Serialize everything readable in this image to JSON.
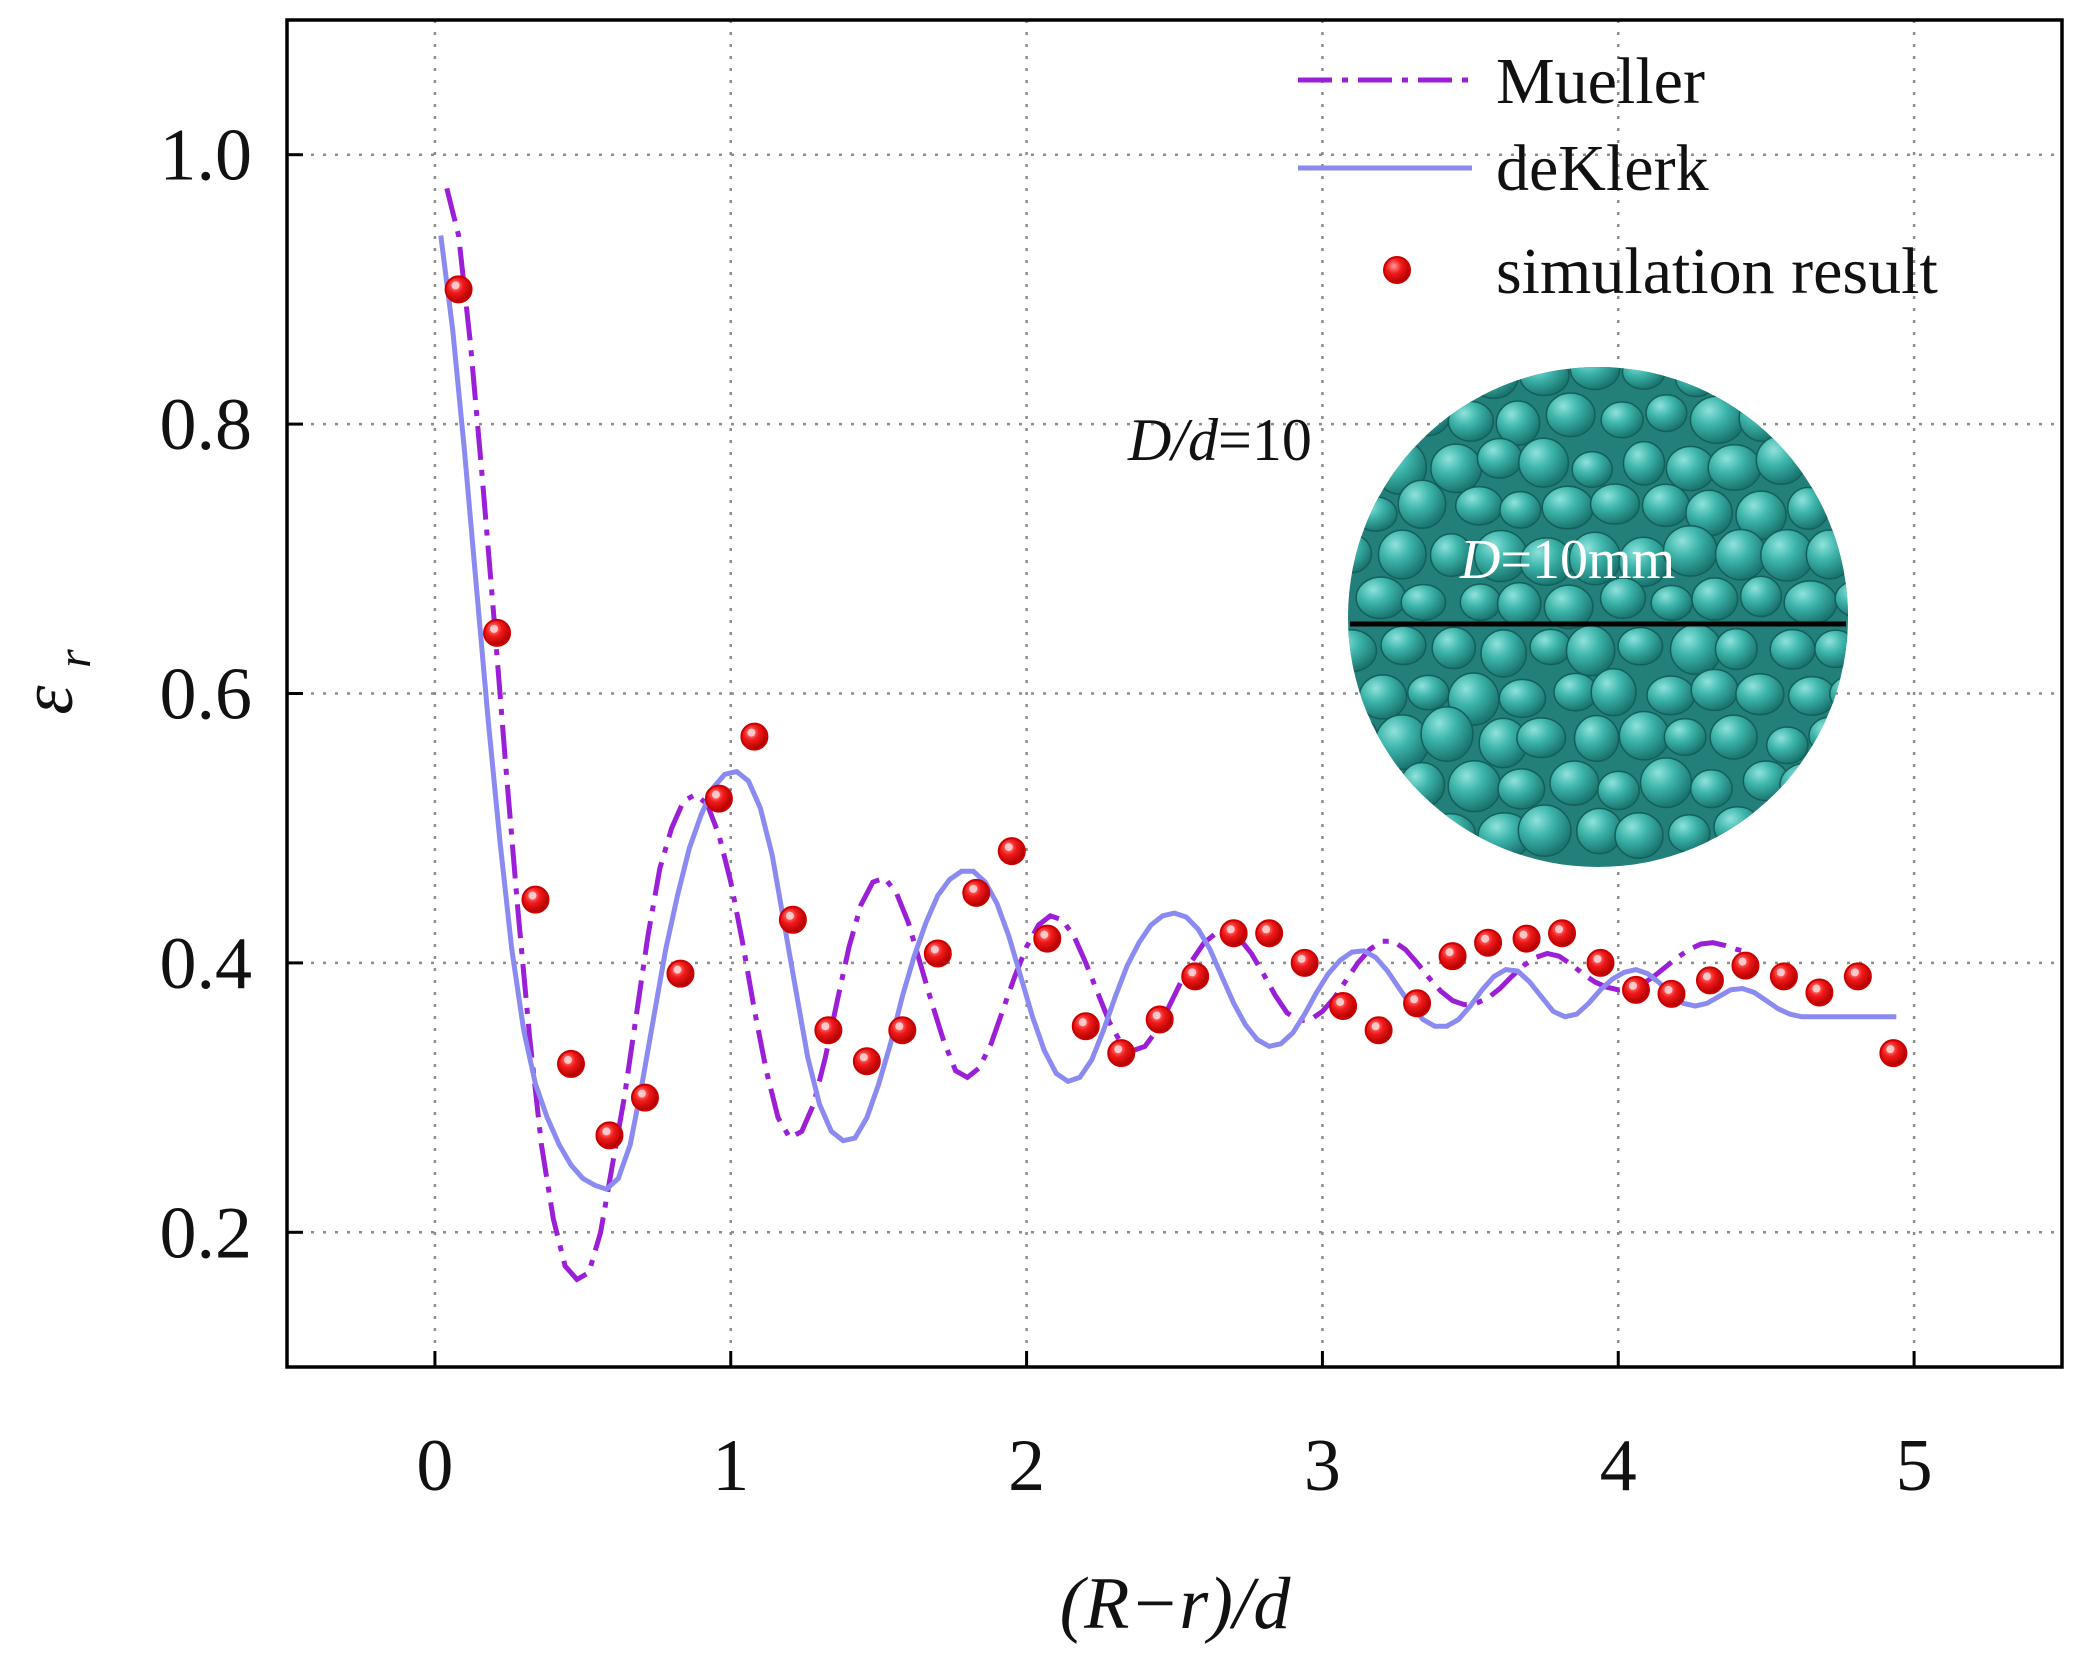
{
  "chart_data": {
    "type": "line",
    "title": "",
    "xlabel": "(R−r)/d",
    "ylabel": "ε",
    "ylabel_subscript": "r",
    "xlim": [
      -0.5,
      5.5
    ],
    "ylim": [
      0.1,
      1.1
    ],
    "xticks": [
      0,
      1,
      2,
      3,
      4,
      5
    ],
    "xtick_labels": [
      "0",
      "1",
      "2",
      "3",
      "4",
      "5"
    ],
    "yticks": [
      0.2,
      0.4,
      0.6,
      0.8,
      1.0
    ],
    "ytick_labels": [
      "0.2",
      "0.4",
      "0.6",
      "0.8",
      "1.0"
    ],
    "grid": true,
    "legend_position": "top-right",
    "series": [
      {
        "name": "Mueller",
        "style": "dash-dot",
        "color": "#9b1fd6",
        "x": [
          0.04,
          0.08,
          0.12,
          0.16,
          0.2,
          0.24,
          0.28,
          0.32,
          0.36,
          0.4,
          0.44,
          0.48,
          0.52,
          0.56,
          0.6,
          0.64,
          0.68,
          0.72,
          0.76,
          0.8,
          0.84,
          0.88,
          0.92,
          0.96,
          1.0,
          1.04,
          1.08,
          1.12,
          1.16,
          1.2,
          1.24,
          1.28,
          1.32,
          1.36,
          1.4,
          1.44,
          1.48,
          1.52,
          1.56,
          1.6,
          1.64,
          1.68,
          1.72,
          1.76,
          1.8,
          1.84,
          1.88,
          1.92,
          1.96,
          2.0,
          2.04,
          2.08,
          2.12,
          2.16,
          2.2,
          2.24,
          2.28,
          2.32,
          2.36,
          2.4,
          2.44,
          2.48,
          2.52,
          2.56,
          2.6,
          2.64,
          2.68,
          2.72,
          2.76,
          2.8,
          2.84,
          2.88,
          2.92,
          2.96,
          3.0,
          3.04,
          3.08,
          3.12,
          3.16,
          3.2,
          3.24,
          3.28,
          3.32,
          3.36,
          3.4,
          3.44,
          3.48,
          3.52,
          3.56,
          3.6,
          3.64,
          3.68,
          3.72,
          3.76,
          3.8,
          3.84,
          3.88,
          3.92,
          3.96,
          4.0,
          4.04,
          4.08,
          4.12,
          4.16,
          4.2,
          4.24,
          4.28,
          4.32,
          4.36,
          4.4,
          4.44
        ],
        "y": [
          0.975,
          0.94,
          0.86,
          0.76,
          0.655,
          0.545,
          0.44,
          0.345,
          0.265,
          0.21,
          0.175,
          0.165,
          0.17,
          0.2,
          0.25,
          0.3,
          0.36,
          0.42,
          0.47,
          0.5,
          0.52,
          0.525,
          0.518,
          0.495,
          0.46,
          0.415,
          0.365,
          0.32,
          0.285,
          0.27,
          0.275,
          0.295,
          0.33,
          0.372,
          0.412,
          0.443,
          0.46,
          0.463,
          0.452,
          0.43,
          0.4,
          0.37,
          0.342,
          0.32,
          0.315,
          0.322,
          0.34,
          0.365,
          0.39,
          0.412,
          0.428,
          0.435,
          0.432,
          0.42,
          0.4,
          0.378,
          0.356,
          0.34,
          0.335,
          0.338,
          0.35,
          0.367,
          0.385,
          0.402,
          0.415,
          0.422,
          0.423,
          0.418,
          0.407,
          0.392,
          0.376,
          0.363,
          0.357,
          0.358,
          0.364,
          0.374,
          0.387,
          0.4,
          0.41,
          0.416,
          0.416,
          0.41,
          0.4,
          0.389,
          0.379,
          0.372,
          0.369,
          0.37,
          0.374,
          0.381,
          0.39,
          0.398,
          0.404,
          0.407,
          0.405,
          0.399,
          0.392,
          0.386,
          0.382,
          0.38,
          0.381,
          0.384,
          0.39,
          0.397,
          0.404,
          0.41,
          0.414,
          0.415,
          0.413,
          0.41,
          0.408
        ]
      },
      {
        "name": "deKlerk",
        "style": "solid",
        "color": "#8a8af0",
        "x": [
          0.02,
          0.06,
          0.1,
          0.14,
          0.18,
          0.22,
          0.26,
          0.3,
          0.34,
          0.38,
          0.42,
          0.46,
          0.5,
          0.54,
          0.58,
          0.62,
          0.66,
          0.7,
          0.74,
          0.78,
          0.82,
          0.86,
          0.9,
          0.94,
          0.98,
          1.02,
          1.06,
          1.1,
          1.14,
          1.18,
          1.22,
          1.26,
          1.3,
          1.34,
          1.38,
          1.42,
          1.46,
          1.5,
          1.54,
          1.58,
          1.62,
          1.66,
          1.7,
          1.74,
          1.78,
          1.82,
          1.86,
          1.9,
          1.94,
          1.98,
          2.02,
          2.06,
          2.1,
          2.14,
          2.18,
          2.22,
          2.26,
          2.3,
          2.34,
          2.38,
          2.42,
          2.46,
          2.5,
          2.54,
          2.58,
          2.62,
          2.66,
          2.7,
          2.74,
          2.78,
          2.82,
          2.86,
          2.9,
          2.94,
          2.98,
          3.02,
          3.06,
          3.1,
          3.14,
          3.18,
          3.22,
          3.26,
          3.3,
          3.34,
          3.38,
          3.42,
          3.46,
          3.5,
          3.54,
          3.58,
          3.62,
          3.66,
          3.7,
          3.74,
          3.78,
          3.82,
          3.86,
          3.9,
          3.94,
          3.98,
          4.02,
          4.06,
          4.1,
          4.14,
          4.18,
          4.22,
          4.26,
          4.3,
          4.34,
          4.38,
          4.42,
          4.46,
          4.5,
          4.54,
          4.58,
          4.62,
          4.66,
          4.7,
          4.74,
          4.78,
          4.82,
          4.86,
          4.9,
          4.94
        ],
        "y": [
          0.94,
          0.87,
          0.78,
          0.68,
          0.58,
          0.49,
          0.41,
          0.35,
          0.31,
          0.285,
          0.265,
          0.25,
          0.24,
          0.235,
          0.232,
          0.24,
          0.265,
          0.31,
          0.36,
          0.41,
          0.45,
          0.485,
          0.51,
          0.53,
          0.54,
          0.542,
          0.535,
          0.515,
          0.48,
          0.43,
          0.38,
          0.33,
          0.295,
          0.275,
          0.268,
          0.27,
          0.285,
          0.31,
          0.34,
          0.375,
          0.405,
          0.43,
          0.45,
          0.462,
          0.468,
          0.468,
          0.46,
          0.444,
          0.42,
          0.39,
          0.36,
          0.335,
          0.318,
          0.312,
          0.315,
          0.328,
          0.35,
          0.375,
          0.398,
          0.415,
          0.428,
          0.435,
          0.437,
          0.434,
          0.425,
          0.41,
          0.39,
          0.37,
          0.354,
          0.343,
          0.338,
          0.34,
          0.348,
          0.362,
          0.378,
          0.392,
          0.402,
          0.408,
          0.409,
          0.404,
          0.394,
          0.381,
          0.368,
          0.358,
          0.353,
          0.353,
          0.358,
          0.368,
          0.38,
          0.39,
          0.395,
          0.394,
          0.386,
          0.375,
          0.364,
          0.36,
          0.362,
          0.37,
          0.38,
          0.388,
          0.393,
          0.395,
          0.392,
          0.385,
          0.376,
          0.37,
          0.368,
          0.37,
          0.375,
          0.38,
          0.381,
          0.378,
          0.372,
          0.366,
          0.362,
          0.36,
          0.36,
          0.36,
          0.36,
          0.36,
          0.36,
          0.36,
          0.36,
          0.36
        ]
      },
      {
        "name": "simulation result",
        "style": "markers",
        "color": "#ee1111",
        "x": [
          0.08,
          0.21,
          0.34,
          0.46,
          0.59,
          0.71,
          0.83,
          0.96,
          1.08,
          1.21,
          1.33,
          1.46,
          1.58,
          1.7,
          1.83,
          1.95,
          2.07,
          2.2,
          2.32,
          2.45,
          2.57,
          2.7,
          2.82,
          2.94,
          3.07,
          3.19,
          3.32,
          3.44,
          3.56,
          3.69,
          3.81,
          3.94,
          4.06,
          4.18,
          4.31,
          4.43,
          4.56,
          4.68,
          4.81,
          4.93
        ],
        "y": [
          0.9,
          0.645,
          0.447,
          0.325,
          0.272,
          0.3,
          0.392,
          0.522,
          0.568,
          0.432,
          0.35,
          0.327,
          0.35,
          0.407,
          0.452,
          0.483,
          0.418,
          0.353,
          0.333,
          0.358,
          0.39,
          0.422,
          0.422,
          0.4,
          0.368,
          0.35,
          0.37,
          0.405,
          0.415,
          0.418,
          0.422,
          0.4,
          0.38,
          0.377,
          0.387,
          0.398,
          0.39,
          0.378,
          0.39,
          0.333
        ]
      }
    ],
    "annotations": [
      {
        "text_italic": "D/d",
        "text_rest": "=10"
      },
      {
        "text_italic": "D",
        "text_rest": "=10mm"
      }
    ],
    "inset_image": "packed-bed-cross-section"
  }
}
